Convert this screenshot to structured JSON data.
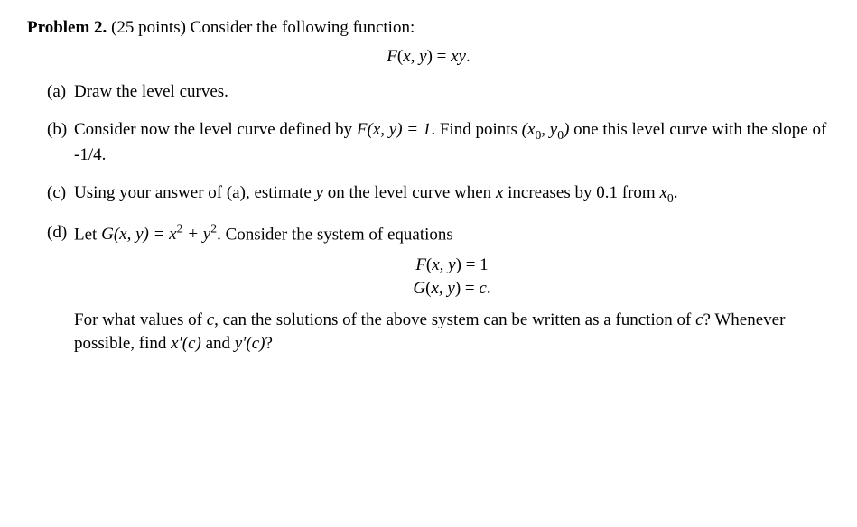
{
  "header": {
    "label": "Problem 2.",
    "points": "(25 points)",
    "intro": "Consider the following function:"
  },
  "eq_main": "F(x, y) = xy.",
  "parts": {
    "a": {
      "label": "(a)",
      "text": "Draw the level curves."
    },
    "b": {
      "label": "(b)",
      "t1": "Consider now the level curve defined by ",
      "eq1": "F(x, y) = 1",
      "t2": ". Find points ",
      "pt": "(x",
      "pt_s1": "0",
      "pt_m": ", y",
      "pt_s2": "0",
      "pt_e": ")",
      "t3": " one this level curve with the slope of -1/4."
    },
    "c": {
      "label": "(c)",
      "t1": "Using your answer of (a), estimate ",
      "v1": "y",
      "t2": " on the level curve when ",
      "v2": "x",
      "t3": " increases by 0.1 from ",
      "x0a": "x",
      "x0s": "0",
      "x0e": "."
    },
    "d": {
      "label": "(d)",
      "t1": "Let ",
      "g1": "G(x, y) = x",
      "g_sup1": "2",
      "g_mid": " + y",
      "g_sup2": "2",
      "t2": ". Consider the system of equations",
      "eq_line1": "F(x, y) = 1",
      "eq_line2": "G(x, y) = c.",
      "para2a": "For what values of ",
      "cvar": "c",
      "para2b": ", can the solutions of the above system can be written as a function of ",
      "cvar2": "c",
      "para2c": "? Whenever possible, find ",
      "xp": "x′(c)",
      "para2d": " and ",
      "yp": "y′(c)",
      "para2e": "?"
    }
  }
}
